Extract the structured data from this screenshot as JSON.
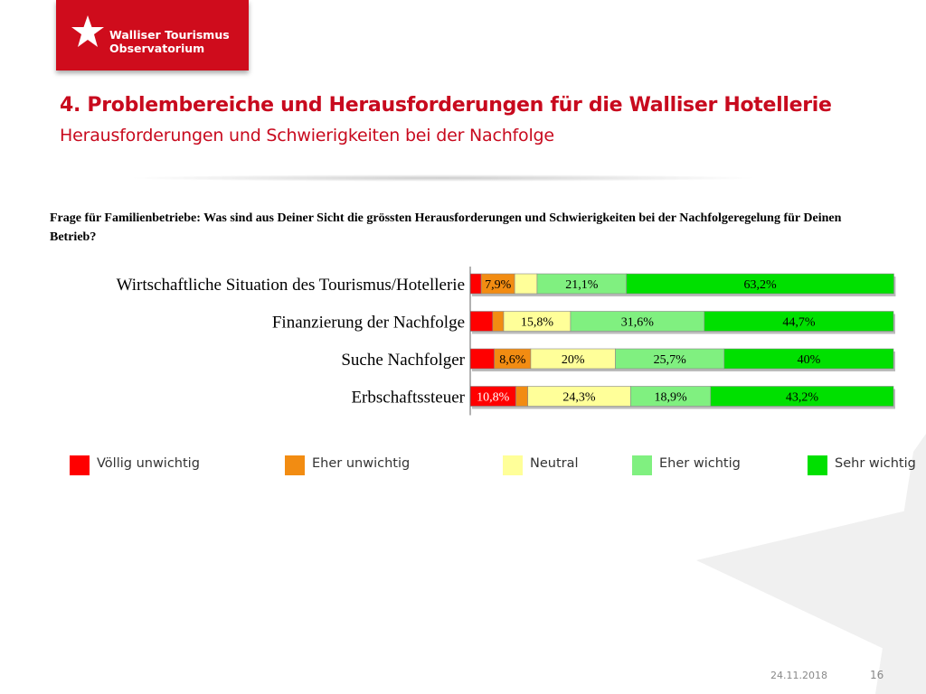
{
  "logo": {
    "line1": "Walliser Tourismus",
    "line2": "Observatorium"
  },
  "slide": {
    "title": "4. Problembereiche und Herausforderungen für die Walliser Hotellerie",
    "subtitle": "Herausforderungen und Schwierigkeiten bei der Nachfolge",
    "question": "Frage für Familienbetriebe: Was sind aus Deiner Sicht die grössten Herausforderungen und Schwierigkeiten bei der Nachfolgeregelung für Deinen Betrieb?"
  },
  "chart_data": {
    "type": "bar",
    "stacked": true,
    "orientation": "horizontal",
    "percent_scale": true,
    "categories": [
      "Wirtschaftliche Situation des Tourismus/Hotellerie",
      "Finanzierung der Nachfolge",
      "Suche Nachfolger",
      "Erbschaftssteuer"
    ],
    "series": [
      {
        "name": "Völlig unwichtig",
        "color": "#ff0000",
        "values": [
          2.6,
          5.3,
          5.7,
          10.8
        ],
        "labels": [
          "",
          "",
          "",
          "10,8%"
        ]
      },
      {
        "name": "Eher unwichtig",
        "color": "#f28c12",
        "values": [
          7.9,
          2.6,
          8.6,
          2.8
        ],
        "labels": [
          "7,9%",
          "",
          "8,6%",
          ""
        ]
      },
      {
        "name": "Neutral",
        "color": "#ffff99",
        "values": [
          5.3,
          15.8,
          20.0,
          24.3
        ],
        "labels": [
          "",
          "15,8%",
          "20%",
          "24,3%"
        ]
      },
      {
        "name": "Eher wichtig",
        "color": "#80f080",
        "values": [
          21.1,
          31.6,
          25.7,
          18.9
        ],
        "labels": [
          "21,1%",
          "31,6%",
          "25,7%",
          "18,9%"
        ]
      },
      {
        "name": "Sehr wichtig",
        "color": "#00e000",
        "values": [
          63.2,
          44.7,
          40.0,
          43.2
        ],
        "labels": [
          "63,2%",
          "44,7%",
          "40%",
          "43,2%"
        ]
      }
    ],
    "legend_position": "bottom",
    "grid": false
  },
  "footer": {
    "date": "24.11.2018",
    "page": "16"
  }
}
